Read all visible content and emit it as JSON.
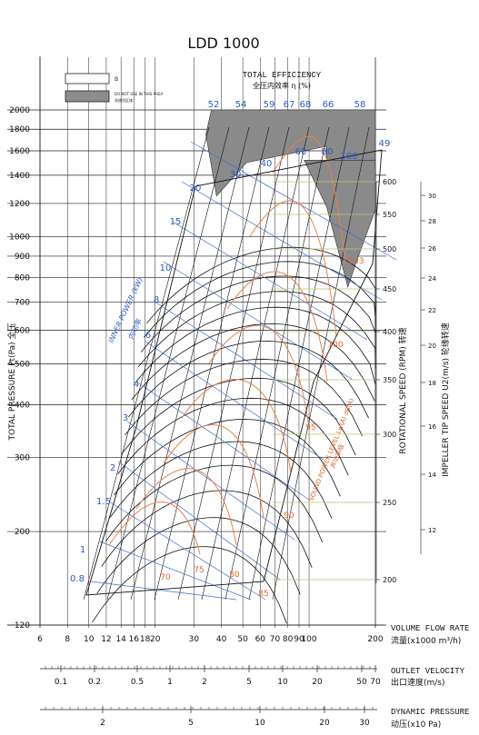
{
  "title": "LDD 1000",
  "legend": {
    "box_label": "B",
    "grey_label_en": "DO NOT USE IN THIS AREA",
    "grey_label_cn": "非使用区域"
  },
  "labels": {
    "efficiency_en": "TOTAL EFFICIENCY",
    "efficiency_cn": "全压内效率 η (%)",
    "y_left": "TOTAL PRESSURE Pt(Pa) 全压",
    "power_en": "INNER POWER (kW)",
    "power_cn": "内功率",
    "sound_en": "SOUND POWER LEVEL Lw(A) dB(A)",
    "sound_cn": "声功率级",
    "rpm_axis": "ROTATIONAL SPEED (RPM) 转速",
    "tip_axis": "IMPELLER TIP SPEED U2(m/s) 轮缘转速",
    "flow_en": "VOLUME FLOW RATE",
    "flow_cn": "流量(x1000 m³/h)",
    "vel_en": "OUTLET VELOCITY",
    "vel_cn": "出口速度(m/s)",
    "dyn_en": "DYNAMIC PRESSURE",
    "dyn_cn": "动压(x10 Pa)"
  },
  "chart_data": {
    "type": "scatter",
    "title": "LDD 1000",
    "x_axis": {
      "label": "VOLUME FLOW RATE 流量(x1000 m³/h)",
      "scale": "log",
      "range": [
        6,
        200
      ],
      "ticks": [
        "6",
        "8",
        "10",
        "12",
        "14",
        "16",
        "18",
        "20",
        "30",
        "40",
        "50",
        "60",
        "70",
        "80",
        "90",
        "100",
        "200"
      ]
    },
    "y_axis": {
      "label": "TOTAL PRESSURE Pt(Pa) 全压",
      "scale": "log",
      "range": [
        120,
        2000
      ],
      "ticks": [
        "120",
        "200",
        "300",
        "400",
        "500",
        "600",
        "700",
        "800",
        "900",
        "1000",
        "1200",
        "1400",
        "1600",
        "1800",
        "2000"
      ]
    },
    "efficiency_labels": [
      "52",
      "54",
      "59",
      "67",
      "68",
      "66",
      "58"
    ],
    "power_labels": [
      "0.8",
      "1",
      "1.5",
      "2",
      "3",
      "4",
      "6",
      "8",
      "10",
      "15",
      "20",
      "30",
      "40",
      "49",
      "60",
      "80",
      "100"
    ],
    "sound_labels": [
      "70",
      "75",
      "80",
      "85",
      "90",
      "95",
      "100",
      "103"
    ],
    "rpm_ticks": [
      "200",
      "250",
      "300",
      "350",
      "400",
      "450",
      "500",
      "550",
      "600"
    ],
    "tip_speed_ticks": [
      "12",
      "14",
      "16",
      "18",
      "20",
      "22",
      "24",
      "26",
      "28",
      "30"
    ],
    "outlet_velocity_ticks": [
      "0.1",
      "0.2",
      "0.5",
      "1",
      "2",
      "5",
      "10",
      "20",
      "50",
      "70"
    ],
    "dynamic_pressure_ticks": [
      "2",
      "5",
      "10",
      "20",
      "30"
    ]
  }
}
